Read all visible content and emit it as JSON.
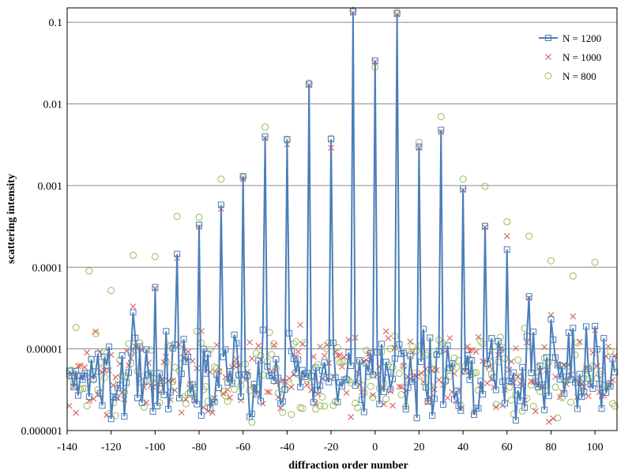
{
  "chart_data": {
    "type": "line",
    "title": "",
    "xlabel": "diffraction  order number",
    "ylabel": "scattering intensity",
    "xlim": [
      -140,
      110
    ],
    "ylim": [
      1e-06,
      0.15
    ],
    "yscale": "log",
    "grid": "horizontal",
    "legend_position": "top-right",
    "x_ticks": [
      -140,
      -120,
      -100,
      -80,
      -60,
      -40,
      -20,
      0,
      20,
      40,
      60,
      80,
      100
    ],
    "x_tick_labels": [
      "-140",
      "-120",
      "-100",
      "-80",
      "-60",
      "-40",
      "-20",
      "0",
      "20",
      "40",
      "60",
      "80",
      "100"
    ],
    "y_ticks": [
      1e-06,
      1e-05,
      0.0001,
      0.001,
      0.01,
      0.1
    ],
    "y_tick_labels": [
      "0.000001",
      "0.00001",
      "0.0001",
      "0.001",
      "0.01",
      "0.1"
    ],
    "peaks": {
      "x": [
        -110,
        -100,
        -90,
        -80,
        -70,
        -60,
        -50,
        -40,
        -30,
        -20,
        -10,
        0,
        10,
        20,
        30,
        40,
        50,
        60,
        70,
        80,
        90,
        100
      ],
      "N1200": [
        2.8e-05,
        5.7e-05,
        0.000145,
        0.00033,
        0.00058,
        0.0013,
        0.004,
        0.0037,
        0.0175,
        0.0037,
        0.135,
        0.034,
        0.128,
        0.003,
        0.0048,
        0.00092,
        0.00032,
        0.000165,
        4.4e-05,
        2.3e-05,
        1.8e-05,
        1.9e-05
      ],
      "N1000": [
        3.3e-05,
        5.5e-05,
        0.00013,
        0.00031,
        0.00052,
        0.0012,
        0.0038,
        0.0032,
        0.017,
        0.0029,
        0.13,
        0.033,
        0.125,
        0.0029,
        0.0045,
        0.00088,
        0.00031,
        0.00024,
        4.2e-05,
        2.6e-05,
        2.5e-05,
        1.7e-05
      ],
      "N800": [
        0.00014,
        0.000135,
        0.00042,
        0.00041,
        0.0012,
        0.00125,
        0.0052,
        0.0036,
        0.018,
        0.0038,
        0.14,
        0.028,
        0.133,
        0.0034,
        0.007,
        0.0012,
        0.00098,
        0.00036,
        0.00024,
        0.00012,
        7.8e-05,
        0.000115
      ]
    },
    "extra_points": {
      "N800": [
        {
          "x": -130,
          "y": 9e-05
        },
        {
          "x": -120,
          "y": 5.2e-05
        }
      ]
    },
    "background": {
      "x_start": -139,
      "x_end": 109,
      "median": 5e-06,
      "note_seed": 7
    },
    "series": [
      {
        "name": "N = 1200",
        "key": "N1200",
        "color": "#4a7ebb",
        "marker": "square",
        "line": true
      },
      {
        "name": "N = 1000",
        "key": "N1000",
        "color": "#d9534f",
        "marker": "x",
        "line": false
      },
      {
        "name": "N = 800",
        "key": "N800",
        "color": "#9bbb59",
        "marker": "circle",
        "line": false
      }
    ]
  }
}
